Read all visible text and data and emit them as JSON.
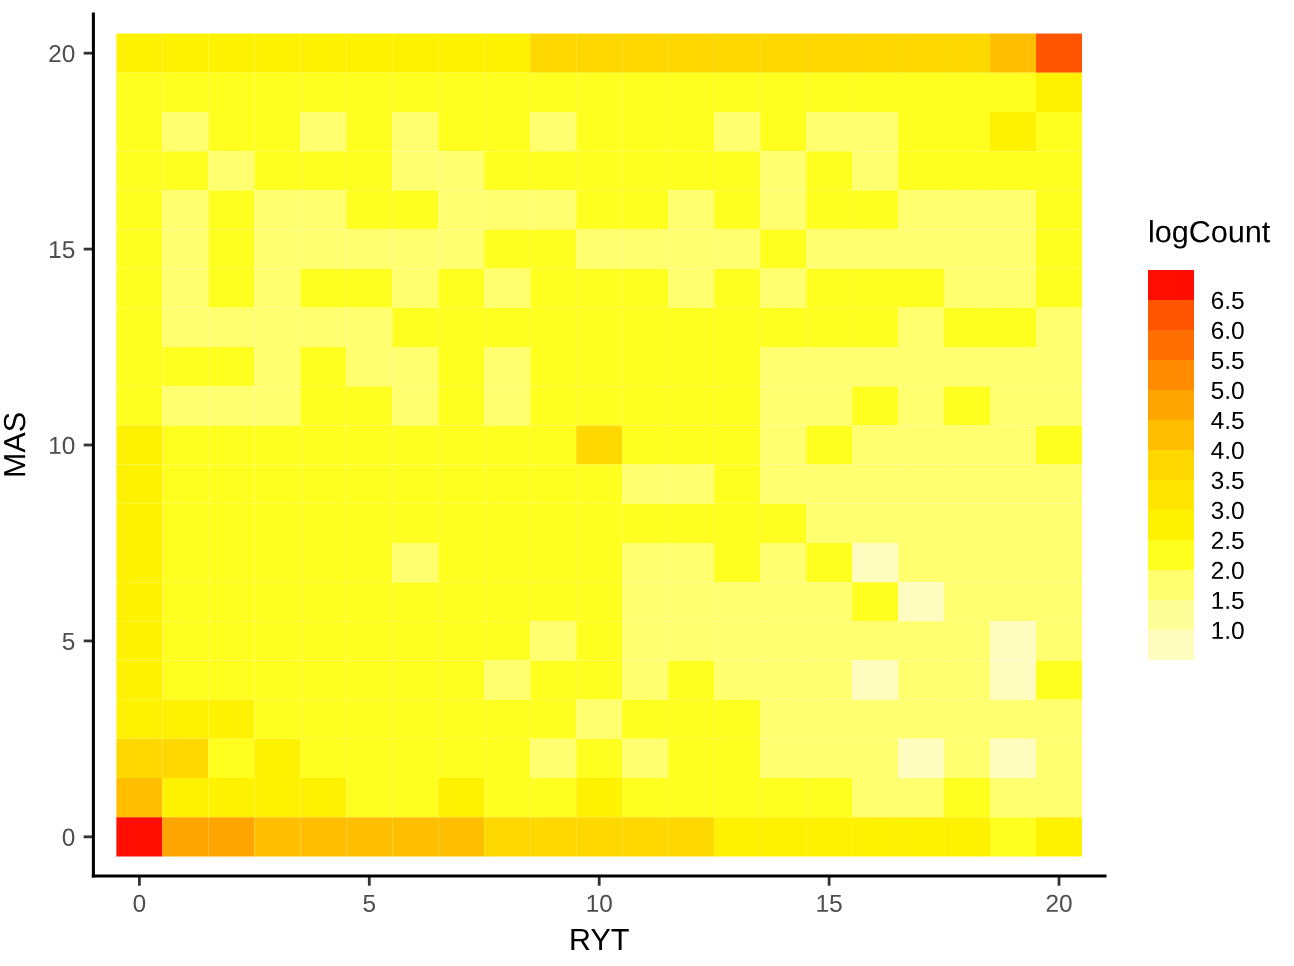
{
  "chart_data": {
    "type": "heatmap",
    "xlabel": "RYT",
    "ylabel": "MAS",
    "clabel": "logCount",
    "categories": [
      "0",
      null,
      null,
      null,
      null,
      "5",
      null,
      null,
      null,
      null,
      "10",
      null,
      null,
      null,
      null,
      "15",
      null,
      null,
      null,
      null,
      "20"
    ],
    "y_categories": [
      "20",
      null,
      null,
      null,
      null,
      "15",
      null,
      null,
      null,
      null,
      "10",
      null,
      null,
      null,
      null,
      "5",
      null,
      null,
      null,
      null,
      "0"
    ],
    "cells": [
      [
        2.75,
        2.75,
        2.75,
        2.75,
        2.75,
        2.75,
        2.75,
        2.75,
        2.75,
        3.75,
        3.75,
        3.75,
        3.75,
        3.75,
        3.75,
        3.75,
        3.75,
        3.75,
        3.75,
        4.25,
        6.25
      ],
      [
        2.25,
        2.25,
        2.25,
        2.25,
        2.25,
        2.25,
        2.25,
        2.25,
        2.25,
        2.25,
        2.25,
        2.25,
        2.25,
        2.25,
        2.25,
        2.25,
        2.25,
        2.25,
        2.25,
        2.25,
        2.75
      ],
      [
        2.25,
        1.75,
        2.25,
        2.25,
        1.75,
        2.25,
        1.75,
        2.25,
        2.25,
        1.75,
        2.25,
        2.25,
        2.25,
        1.75,
        2.25,
        1.75,
        1.75,
        2.25,
        2.25,
        2.75,
        2.25
      ],
      [
        2.25,
        2.25,
        1.75,
        2.25,
        2.25,
        2.25,
        1.75,
        1.75,
        2.25,
        2.25,
        2.25,
        2.25,
        2.25,
        2.25,
        1.75,
        2.25,
        1.75,
        2.25,
        2.25,
        2.25,
        2.25
      ],
      [
        2.25,
        1.75,
        2.25,
        1.75,
        1.75,
        2.25,
        2.25,
        1.75,
        1.75,
        1.75,
        2.25,
        2.25,
        1.75,
        2.25,
        1.75,
        2.25,
        2.25,
        1.75,
        1.75,
        1.75,
        2.25
      ],
      [
        2.25,
        1.75,
        2.25,
        1.75,
        1.75,
        1.75,
        1.75,
        1.75,
        2.25,
        2.25,
        1.75,
        1.75,
        1.75,
        1.75,
        2.25,
        1.75,
        1.75,
        1.75,
        1.75,
        1.75,
        2.25
      ],
      [
        2.25,
        1.75,
        2.25,
        1.75,
        2.25,
        2.25,
        1.75,
        2.25,
        1.75,
        2.25,
        2.25,
        2.25,
        1.75,
        2.25,
        1.75,
        2.25,
        2.25,
        2.25,
        1.75,
        1.75,
        2.25
      ],
      [
        2.25,
        1.75,
        1.75,
        1.75,
        1.75,
        1.75,
        2.25,
        2.25,
        2.25,
        2.25,
        2.25,
        2.25,
        2.25,
        2.25,
        2.25,
        2.25,
        2.25,
        1.75,
        2.25,
        2.25,
        1.75
      ],
      [
        2.25,
        2.25,
        2.25,
        1.75,
        2.25,
        1.75,
        1.75,
        2.25,
        1.75,
        2.25,
        2.25,
        2.25,
        2.25,
        2.25,
        1.75,
        1.75,
        1.75,
        1.75,
        1.75,
        1.75,
        1.75
      ],
      [
        2.25,
        1.75,
        1.75,
        1.75,
        2.25,
        2.25,
        1.75,
        2.25,
        1.75,
        2.25,
        2.25,
        2.25,
        2.25,
        2.25,
        1.75,
        1.75,
        2.25,
        1.75,
        2.25,
        1.75,
        1.75
      ],
      [
        2.75,
        2.25,
        2.25,
        2.25,
        2.25,
        2.25,
        2.25,
        2.25,
        2.25,
        2.25,
        3.75,
        2.25,
        2.25,
        2.25,
        1.75,
        2.25,
        1.75,
        1.75,
        1.75,
        1.75,
        2.25
      ],
      [
        2.75,
        2.25,
        2.25,
        2.25,
        2.25,
        2.25,
        2.25,
        2.25,
        2.25,
        2.25,
        2.25,
        1.75,
        1.75,
        2.25,
        1.75,
        1.75,
        1.75,
        1.75,
        1.75,
        1.75,
        1.75
      ],
      [
        2.75,
        2.25,
        2.25,
        2.25,
        2.25,
        2.25,
        2.25,
        2.25,
        2.25,
        2.25,
        2.25,
        2.25,
        2.25,
        2.25,
        2.25,
        1.75,
        1.75,
        1.75,
        1.75,
        1.75,
        1.75
      ],
      [
        2.75,
        2.25,
        2.25,
        2.25,
        2.25,
        2.25,
        1.75,
        2.25,
        2.25,
        2.25,
        2.25,
        1.75,
        1.75,
        2.25,
        1.75,
        2.25,
        0.75,
        1.75,
        1.75,
        1.75,
        1.75
      ],
      [
        2.75,
        2.25,
        2.25,
        2.25,
        2.25,
        2.25,
        2.25,
        2.25,
        2.25,
        2.25,
        2.25,
        1.75,
        1.75,
        1.75,
        1.75,
        1.75,
        2.25,
        0.75,
        1.75,
        1.75,
        1.75
      ],
      [
        2.75,
        2.25,
        2.25,
        2.25,
        2.25,
        2.25,
        2.25,
        2.25,
        2.25,
        1.75,
        2.25,
        1.75,
        1.75,
        1.75,
        1.75,
        1.75,
        1.75,
        1.75,
        1.75,
        0.75,
        1.75
      ],
      [
        2.75,
        2.25,
        2.25,
        2.25,
        2.25,
        2.25,
        2.25,
        2.25,
        1.75,
        2.25,
        2.25,
        1.75,
        2.25,
        1.75,
        1.75,
        1.75,
        0.75,
        1.75,
        1.75,
        0.75,
        2.25
      ],
      [
        2.75,
        2.75,
        2.75,
        2.25,
        2.25,
        2.25,
        2.25,
        2.25,
        2.25,
        2.25,
        1.75,
        2.25,
        2.25,
        2.25,
        1.75,
        1.75,
        1.75,
        1.75,
        1.75,
        1.75,
        1.75
      ],
      [
        3.75,
        3.75,
        2.25,
        2.75,
        2.25,
        2.25,
        2.25,
        2.25,
        2.25,
        1.75,
        2.25,
        1.75,
        2.25,
        2.25,
        1.75,
        1.75,
        1.75,
        0.75,
        1.75,
        0.75,
        1.75
      ],
      [
        4.25,
        2.75,
        2.75,
        2.75,
        2.75,
        2.25,
        2.25,
        2.75,
        2.25,
        2.25,
        2.75,
        2.25,
        2.25,
        2.25,
        2.25,
        2.25,
        1.75,
        1.75,
        2.25,
        1.75,
        1.75
      ],
      [
        6.75,
        4.75,
        4.75,
        4.25,
        4.25,
        4.25,
        4.25,
        4.25,
        3.75,
        3.75,
        3.75,
        3.75,
        3.75,
        2.75,
        2.75,
        2.75,
        2.75,
        2.75,
        2.75,
        2.25,
        2.75
      ]
    ],
    "clim": [
      0.5,
      7.0
    ],
    "cticks": [
      {
        "value": 1,
        "label": "1.0"
      },
      1.5,
      {
        "value": 2,
        "label": "2.0"
      },
      2.5,
      {
        "value": 3,
        "label": "3.0"
      },
      3.5,
      {
        "value": 4,
        "label": "4.0"
      },
      4.5,
      {
        "value": 5,
        "label": "5.0"
      },
      5.5,
      {
        "value": 6,
        "label": "6.0"
      },
      6.5
    ]
  }
}
